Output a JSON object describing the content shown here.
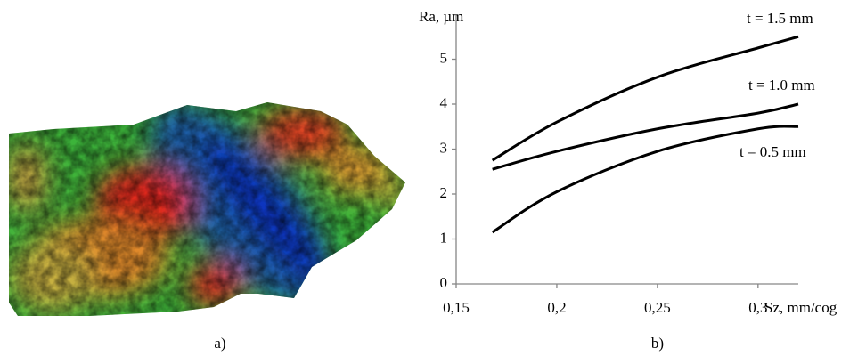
{
  "panel_labels": [
    "a)",
    "b)"
  ],
  "chart_data": {
    "type": "line",
    "y_label": "Ra, µm",
    "x_label": "Sz, mm/cog",
    "x": [
      0.168,
      0.2,
      0.25,
      0.3,
      0.32
    ],
    "series": [
      {
        "name": "t = 1.5 mm",
        "color": "#000000",
        "values": [
          2.75,
          3.6,
          4.6,
          5.25,
          5.5
        ]
      },
      {
        "name": "t = 1.0 mm",
        "color": "#000000",
        "values": [
          2.55,
          2.95,
          3.45,
          3.8,
          4.0
        ]
      },
      {
        "name": "t = 0.5 mm",
        "color": "#000000",
        "values": [
          1.15,
          2.05,
          2.95,
          3.45,
          3.5
        ]
      }
    ],
    "xlim": [
      0.15,
      0.32
    ],
    "xticks": [
      {
        "value": 0.15,
        "label": "0,15"
      },
      {
        "value": 0.2,
        "label": "0,2"
      },
      {
        "value": 0.25,
        "label": "0,25"
      },
      {
        "value": 0.3,
        "label": "0,3"
      }
    ],
    "ylim": [
      0,
      6
    ],
    "yticks": [
      0,
      1,
      2,
      3,
      4,
      5
    ],
    "grid": false
  }
}
